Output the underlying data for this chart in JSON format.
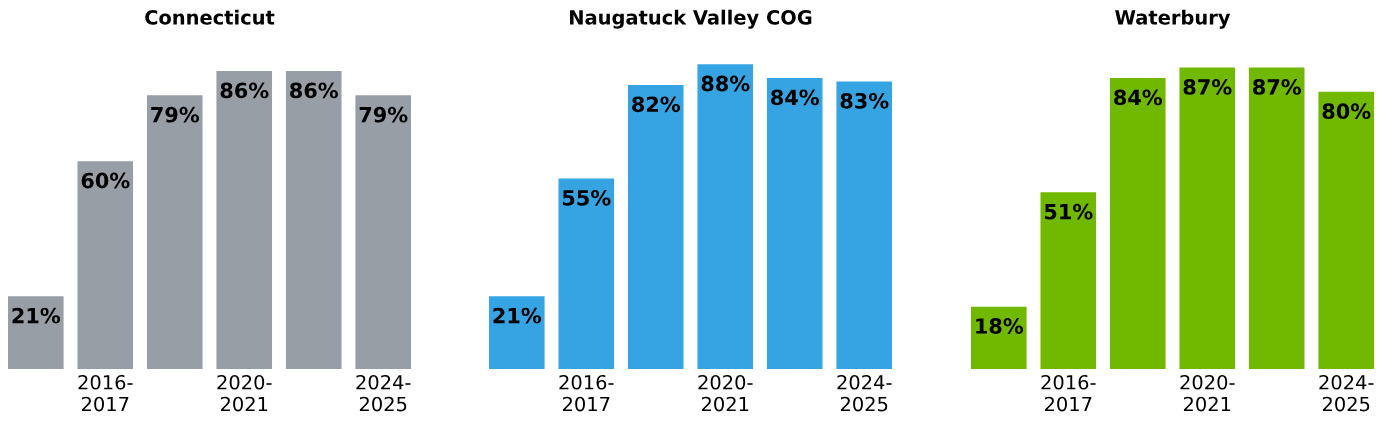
{
  "chart_data": [
    {
      "type": "bar",
      "title": "Connecticut",
      "categories": [
        null,
        "2016-\n2017",
        null,
        "2020-\n2021",
        null,
        "2024-\n2025"
      ],
      "values": [
        21,
        60,
        79,
        86,
        86,
        79
      ],
      "color": "#979ea6",
      "data_labels": true,
      "value_labels": [
        "21%",
        "60%",
        "79%",
        "86%",
        "86%",
        "79%"
      ]
    },
    {
      "type": "bar",
      "title": "Naugatuck Valley COG",
      "categories": [
        null,
        "2016-\n2017",
        null,
        "2020-\n2021",
        null,
        "2024-\n2025"
      ],
      "values": [
        21,
        55,
        82,
        88,
        84,
        83
      ],
      "color": "#36a4e3",
      "data_labels": true,
      "value_labels": [
        "21%",
        "55%",
        "82%",
        "88%",
        "84%",
        "83%"
      ]
    },
    {
      "type": "bar",
      "title": "Waterbury",
      "categories": [
        null,
        "2016-\n2017",
        null,
        "2020-\n2021",
        null,
        "2024-\n2025"
      ],
      "values": [
        18,
        51,
        84,
        87,
        87,
        80
      ],
      "color": "#70b900",
      "data_labels": true,
      "value_labels": [
        "18%",
        "51%",
        "84%",
        "87%",
        "87%",
        "80%"
      ]
    }
  ]
}
